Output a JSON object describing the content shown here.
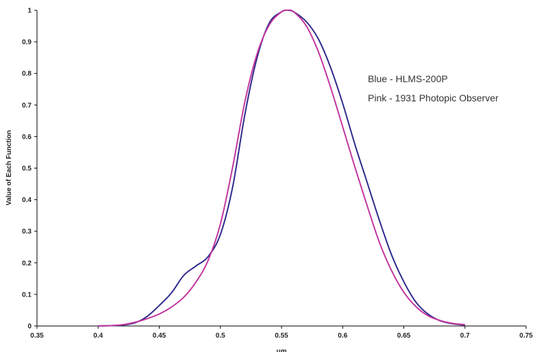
{
  "chart_data": {
    "type": "line",
    "title": "",
    "xlabel": "um",
    "ylabel": "Value of Each Function",
    "xlim": [
      0.35,
      0.75
    ],
    "ylim": [
      0,
      1
    ],
    "x_ticks": [
      "0.35",
      "0.4",
      "0.45",
      "0.5",
      "0.55",
      "0.6",
      "0.65",
      "0.7",
      "0.75"
    ],
    "y_ticks": [
      "0",
      "0.1",
      "0.2",
      "0.3",
      "0.4",
      "0.5",
      "0.6",
      "0.7",
      "0.8",
      "0.9",
      "1"
    ],
    "grid": false,
    "legend_placement": "top-right",
    "annotations": [
      "Blue - HLMS-200P",
      "Pink - 1931 Photopic Observer"
    ],
    "series": [
      {
        "color": "#2e2a8c",
        "x": [
          0.4,
          0.41,
          0.42,
          0.43,
          0.44,
          0.45,
          0.46,
          0.47,
          0.48,
          0.49,
          0.5,
          0.51,
          0.52,
          0.53,
          0.54,
          0.55,
          0.555,
          0.56,
          0.57,
          0.58,
          0.59,
          0.6,
          0.61,
          0.62,
          0.63,
          0.64,
          0.65,
          0.66,
          0.67,
          0.68,
          0.69,
          0.7
        ],
        "y": [
          0.0,
          0.001,
          0.003,
          0.01,
          0.03,
          0.065,
          0.105,
          0.16,
          0.19,
          0.22,
          0.29,
          0.44,
          0.67,
          0.85,
          0.96,
          0.995,
          1.0,
          0.995,
          0.965,
          0.91,
          0.82,
          0.705,
          0.575,
          0.455,
          0.335,
          0.225,
          0.14,
          0.075,
          0.037,
          0.016,
          0.007,
          0.003
        ]
      },
      {
        "color": "#c2369e",
        "x": [
          0.4,
          0.41,
          0.42,
          0.43,
          0.44,
          0.45,
          0.46,
          0.47,
          0.48,
          0.49,
          0.5,
          0.51,
          0.52,
          0.53,
          0.54,
          0.55,
          0.555,
          0.56,
          0.57,
          0.58,
          0.59,
          0.6,
          0.61,
          0.62,
          0.63,
          0.64,
          0.65,
          0.66,
          0.67,
          0.68,
          0.69,
          0.7
        ],
        "y": [
          0.0004,
          0.0012,
          0.004,
          0.0116,
          0.023,
          0.038,
          0.06,
          0.091,
          0.139,
          0.208,
          0.323,
          0.503,
          0.71,
          0.862,
          0.954,
          0.995,
          1.0,
          0.995,
          0.952,
          0.87,
          0.757,
          0.631,
          0.503,
          0.381,
          0.265,
          0.175,
          0.107,
          0.061,
          0.032,
          0.017,
          0.0082,
          0.0041
        ]
      }
    ]
  }
}
